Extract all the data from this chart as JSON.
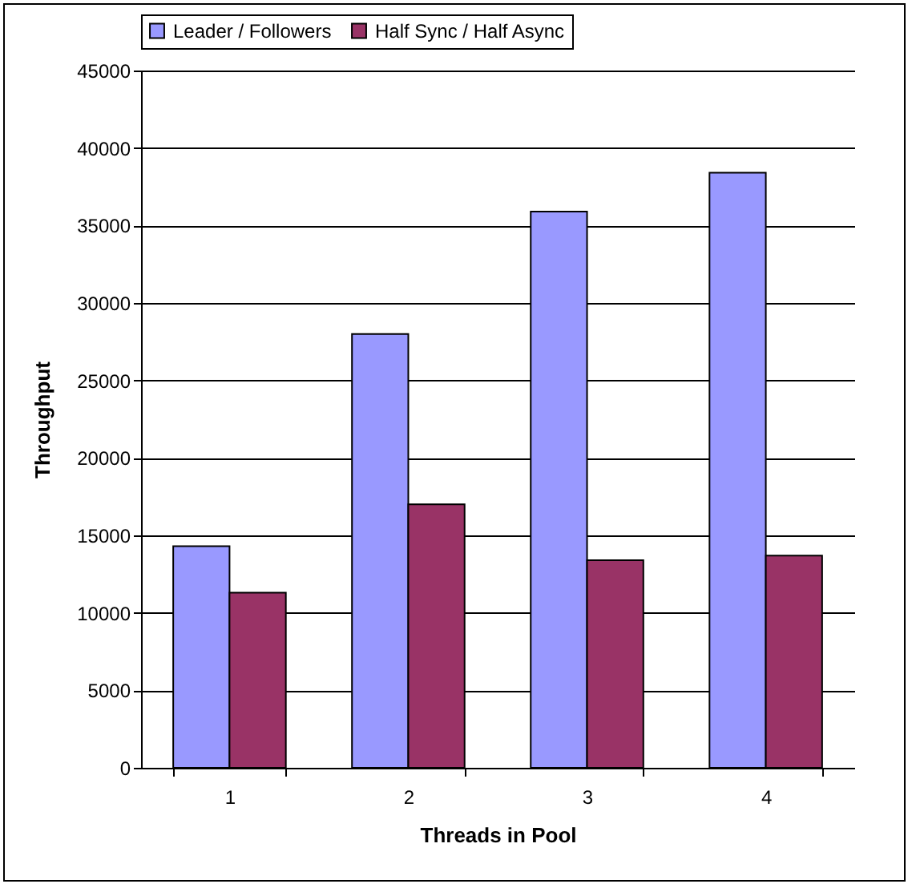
{
  "chart_data": {
    "type": "bar",
    "xlabel": "Threads in Pool",
    "ylabel": "Throughput",
    "categories": [
      "1",
      "2",
      "3",
      "4"
    ],
    "series": [
      {
        "name": "Leader / Followers",
        "color": "#9999ff",
        "values": [
          14300,
          28000,
          35900,
          38400
        ]
      },
      {
        "name": "Half Sync / Half Async",
        "color": "#993366",
        "values": [
          11300,
          17000,
          13400,
          13700
        ]
      }
    ],
    "ylim": [
      0,
      45000
    ],
    "yticks": [
      0,
      5000,
      10000,
      15000,
      20000,
      25000,
      30000,
      35000,
      40000,
      45000
    ],
    "grid": "y",
    "legend": "top"
  }
}
